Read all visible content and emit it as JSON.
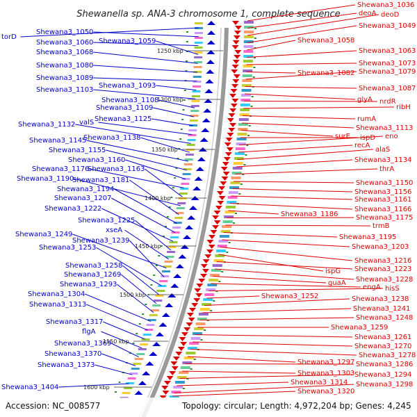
{
  "title": "Shewanella sp. ANA-3 chromosome 1, complete sequence",
  "accession_text": "Accession: NC_008577",
  "topology_text": "Topology: circular; Length: 4,972,204 bp; Genes: 4,245",
  "colors": {
    "left": "#0000cc",
    "right": "#dd0000",
    "tick": "#2e8b2e",
    "arc": "#9a9a9a"
  },
  "kbp_labels": [
    "1250 kbp",
    "1300 kbp",
    "1350 kbp",
    "1400 kbp",
    "1450 kbp",
    "1500 kbp",
    "1550 kbp",
    "1600 kbp"
  ],
  "left_labels": [
    "torD",
    "Shewana3_1050",
    "Shewana3_1060",
    "Shewana3_1059",
    "Shewana3_1068",
    "Shewana3_1080",
    "Shewana3_1089",
    "Shewana3_1093",
    "Shewana3_1103",
    "Shewana3_1108",
    "Shewana3_1109",
    "Shewana3_1125",
    "valS",
    "Shewana3_1132",
    "Shewana3_1138",
    "Shewana3_1145",
    "Shewana3_1155",
    "Shewana3_1160",
    "Shewana3_1176",
    "Shewana3_1163",
    "Shewana3_1190",
    "Shewana3_1181",
    "Shewana3_1194",
    "Shewana3_1207",
    "Shewana3_1222",
    "Shewana3_1225",
    "xseA",
    "Shewana3_1249",
    "Shewana3_1239",
    "Shewana3_1253",
    "Shewana3_1258",
    "Shewana3_1269",
    "Shewana3_1293",
    "Shewana3_1304",
    "Shewana3_1313",
    "Shewana3_1317",
    "flgA",
    "Shewana3_1369",
    "Shewana3_1370",
    "Shewana3_1373",
    "Shewana3_1404"
  ],
  "right_labels": [
    "Shewana3_1036",
    "deoA",
    "deoD",
    "Shewana3_1049",
    "Shewana3_1058",
    "Shewana3_1063",
    "Shewana3_1073",
    "Shewana3_1082",
    "Shewana3_1079",
    "Shewana3_1087",
    "glyA",
    "nrdR",
    "ribH",
    "rumA",
    "Shewana3_1113",
    "surE",
    "ispD",
    "eno",
    "recA",
    "alaS",
    "Shewana3_1134",
    "thrA",
    "Shewana3_1150",
    "Shewana3_1156",
    "Shewana3_1161",
    "Shewana3_1166",
    "Shewana3_1186",
    "Shewana3_1175",
    "trmB",
    "Shewana3_1195",
    "Shewana3_1203",
    "Shewana3_1216",
    "ispG",
    "Shewana3_1223",
    "Shewana3_1228",
    "guaA",
    "engA",
    "hisS",
    "Shewana3_1252",
    "Shewana3_1238",
    "Shewana3_1241",
    "Shewana3_1248",
    "Shewana3_1259",
    "Shewana3_1261",
    "Shewana3_1270",
    "Shewana3_1278",
    "Shewana3_1297",
    "Shewana3_1286",
    "Shewana3_1303",
    "Shewana3_1294",
    "Shewana3_1314",
    "Shewana3_1298",
    "Shewana3_1320"
  ]
}
